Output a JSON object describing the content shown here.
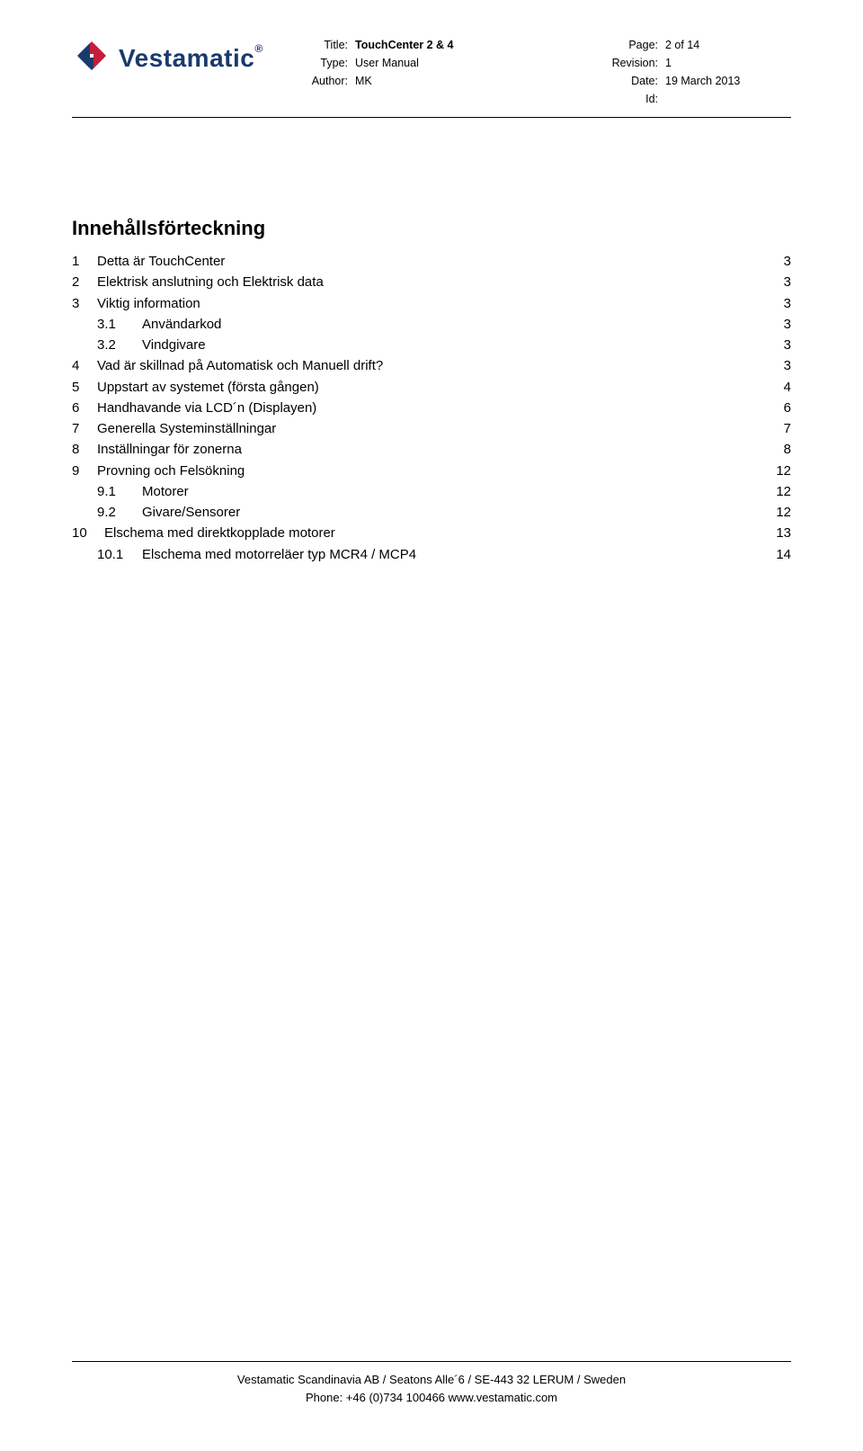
{
  "header": {
    "logo_name": "Vestamatic",
    "logo_tm": "®",
    "center": {
      "title_label": "Title:",
      "title_value": "TouchCenter 2 & 4",
      "type_label": "Type:",
      "type_value": "User Manual",
      "author_label": "Author:",
      "author_value": "MK"
    },
    "right": {
      "page_label": "Page:",
      "page_value": "2 of 14",
      "revision_label": "Revision:",
      "revision_value": "1",
      "date_label": "Date:",
      "date_value": "19 March 2013",
      "id_label": "Id:",
      "id_value": ""
    }
  },
  "toc": {
    "title": "Innehållsförteckning",
    "items": [
      {
        "num": "1",
        "label": "Detta är TouchCenter",
        "page": "3",
        "indent": false
      },
      {
        "num": "2",
        "label": "Elektrisk anslutning och Elektrisk data",
        "page": "3",
        "indent": false
      },
      {
        "num": "3",
        "label": "Viktig information",
        "page": "3",
        "indent": false
      },
      {
        "num": "3.1",
        "label": "Användarkod",
        "page": "3",
        "indent": true
      },
      {
        "num": "3.2",
        "label": "Vindgivare",
        "page": "3",
        "indent": true
      },
      {
        "num": "4",
        "label": "Vad är skillnad på Automatisk och Manuell drift?",
        "page": "3",
        "indent": false
      },
      {
        "num": "5",
        "label": "Uppstart av systemet (första gången)",
        "page": "4",
        "indent": false
      },
      {
        "num": "6",
        "label": "Handhavande via LCD´n (Displayen)",
        "page": "6",
        "indent": false
      },
      {
        "num": "7",
        "label": "Generella Systeminställningar",
        "page": "7",
        "indent": false
      },
      {
        "num": "8",
        "label": "Inställningar för zonerna",
        "page": "8",
        "indent": false
      },
      {
        "num": "9",
        "label": "Provning och Felsökning",
        "page": "12",
        "indent": false
      },
      {
        "num": "9.1",
        "label": "Motorer",
        "page": "12",
        "indent": true
      },
      {
        "num": "9.2",
        "label": "Givare/Sensorer",
        "page": "12",
        "indent": true
      },
      {
        "num": "10",
        "label": "Elschema med direktkopplade motorer",
        "page": "13",
        "indent": false,
        "wide": true
      },
      {
        "num": "10.1",
        "label": "Elschema med motorreläer typ MCR4 / MCP4",
        "page": "14",
        "indent": true
      }
    ]
  },
  "footer": {
    "line1": "Vestamatic Scandinavia AB / Seatons Alle´6  / SE-443 32 LERUM  / Sweden",
    "line2": "Phone: +46 (0)734 100466  www.vestamatic.com"
  },
  "logo_colors": {
    "arrow_red": "#c41e3a",
    "arrow_blue": "#1a3a6e"
  }
}
